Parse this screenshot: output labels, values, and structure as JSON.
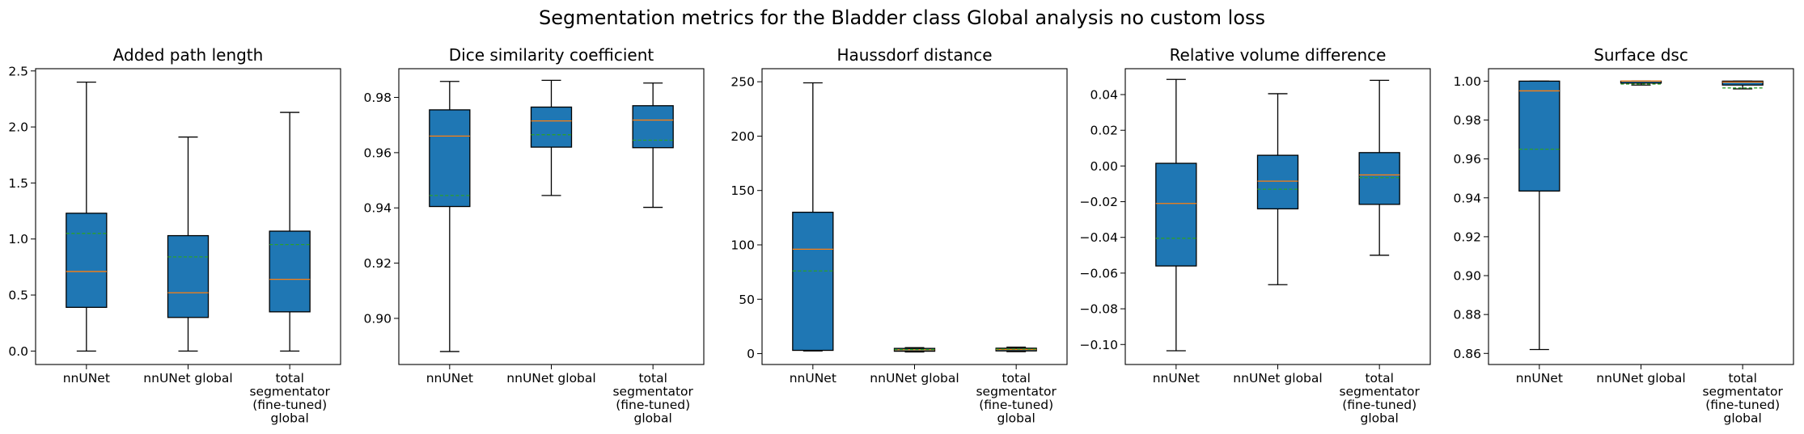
{
  "figure": {
    "title": "Segmentation metrics for the Bladder class Global analysis no custom loss"
  },
  "colors": {
    "box_fill": "#1f77b4",
    "median": "#ff7f0e",
    "mean": "#2ca02c",
    "edge": "#000000"
  },
  "chart_data": [
    {
      "type": "box",
      "title": "Added path length",
      "categories": [
        "nnUNet",
        "nnUNet global",
        "total segmentator (fine-tuned) global"
      ],
      "ylim": [
        -0.12,
        2.52
      ],
      "yticks": [
        0.0,
        0.5,
        1.0,
        1.5,
        2.0,
        2.5
      ],
      "tick_decimals": 1,
      "boxes": [
        {
          "whislo": 0.0,
          "q1": 0.39,
          "median": 0.71,
          "q3": 1.23,
          "whishi": 2.4,
          "mean": 1.05
        },
        {
          "whislo": 0.0,
          "q1": 0.3,
          "median": 0.52,
          "q3": 1.03,
          "whishi": 1.91,
          "mean": 0.84
        },
        {
          "whislo": 0.0,
          "q1": 0.35,
          "median": 0.64,
          "q3": 1.07,
          "whishi": 2.13,
          "mean": 0.95
        }
      ]
    },
    {
      "type": "box",
      "title": "Dice similarity coefficient",
      "categories": [
        "nnUNet",
        "nnUNet global",
        "total segmentator (fine-tuned) global"
      ],
      "ylim": [
        0.8833,
        0.9904
      ],
      "yticks": [
        0.9,
        0.92,
        0.94,
        0.96,
        0.98
      ],
      "tick_decimals": 2,
      "boxes": [
        {
          "whislo": 0.888,
          "q1": 0.9405,
          "median": 0.966,
          "q3": 0.9755,
          "whishi": 0.9858,
          "mean": 0.9445
        },
        {
          "whislo": 0.9445,
          "q1": 0.962,
          "median": 0.9715,
          "q3": 0.9765,
          "whishi": 0.9862,
          "mean": 0.9665
        },
        {
          "whislo": 0.9402,
          "q1": 0.9618,
          "median": 0.9718,
          "q3": 0.977,
          "whishi": 0.9852,
          "mean": 0.9645
        }
      ]
    },
    {
      "type": "box",
      "title": "Haussdorf distance",
      "categories": [
        "nnUNet",
        "nnUNet global",
        "total segmentator (fine-tuned) global"
      ],
      "ylim": [
        -10,
        262
      ],
      "yticks": [
        0,
        50,
        100,
        150,
        200,
        250
      ],
      "tick_decimals": 0,
      "boxes": [
        {
          "whislo": 2.5,
          "q1": 3.0,
          "median": 96,
          "q3": 130,
          "whishi": 249,
          "mean": 76
        },
        {
          "whislo": 1.5,
          "q1": 2.2,
          "median": 3.5,
          "q3": 4.8,
          "whishi": 5.5,
          "mean": 3.8
        },
        {
          "whislo": 1.8,
          "q1": 2.5,
          "median": 3.8,
          "q3": 5.0,
          "whishi": 6.0,
          "mean": 4.2
        }
      ]
    },
    {
      "type": "box",
      "title": "Relative volume difference",
      "categories": [
        "nnUNet",
        "nnUNet global",
        "total segmentator (fine-tuned) global"
      ],
      "ylim": [
        -0.1112,
        0.0545
      ],
      "yticks": [
        -0.1,
        -0.08,
        -0.06,
        -0.04,
        -0.02,
        0.0,
        0.02,
        0.04
      ],
      "tick_decimals": 2,
      "boxes": [
        {
          "whislo": -0.1035,
          "q1": -0.056,
          "median": -0.021,
          "q3": 0.0015,
          "whishi": 0.0485,
          "mean": -0.0405
        },
        {
          "whislo": -0.0665,
          "q1": -0.024,
          "median": -0.0085,
          "q3": 0.006,
          "whishi": 0.0405,
          "mean": -0.013
        },
        {
          "whislo": -0.05,
          "q1": -0.0215,
          "median": -0.005,
          "q3": 0.0075,
          "whishi": 0.048,
          "mean": -0.0065
        }
      ]
    },
    {
      "type": "box",
      "title": "Surface dsc",
      "categories": [
        "nnUNet",
        "nnUNet global",
        "total segmentator (fine-tuned) global"
      ],
      "ylim": [
        0.8543,
        1.0064
      ],
      "yticks": [
        0.86,
        0.88,
        0.9,
        0.92,
        0.94,
        0.96,
        0.98,
        1.0
      ],
      "tick_decimals": 2,
      "boxes": [
        {
          "whislo": 0.862,
          "q1": 0.9435,
          "median": 0.995,
          "q3": 1.0,
          "whishi": 1.0,
          "mean": 0.965
        },
        {
          "whislo": 0.998,
          "q1": 0.999,
          "median": 1.0,
          "q3": 1.0,
          "whishi": 1.0,
          "mean": 0.9985
        },
        {
          "whislo": 0.996,
          "q1": 0.998,
          "median": 0.9995,
          "q3": 1.0,
          "whishi": 1.0,
          "mean": 0.9965
        }
      ]
    }
  ]
}
